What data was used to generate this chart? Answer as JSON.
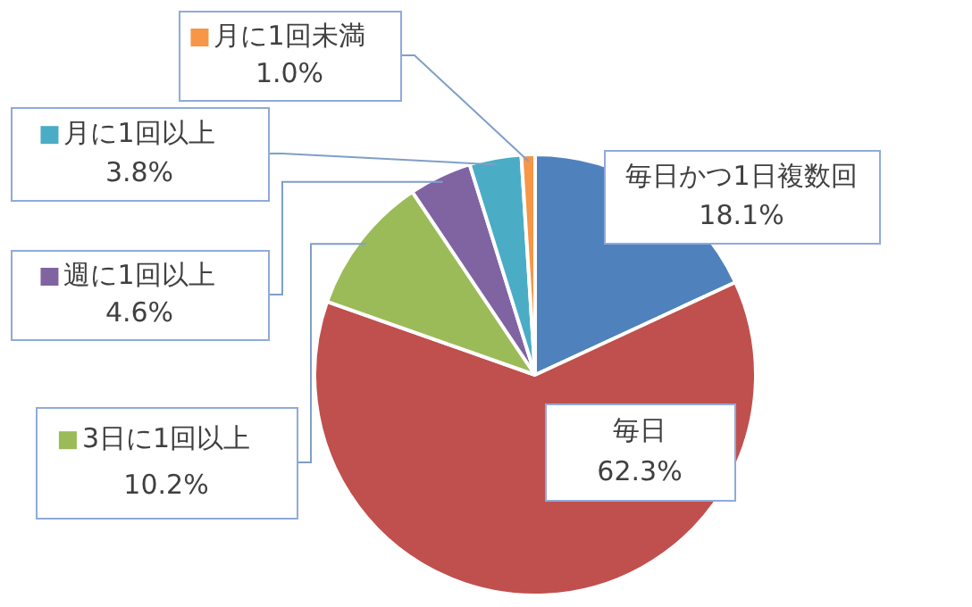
{
  "chart_data": {
    "type": "pie",
    "categories": [
      "毎日かつ1日複数回",
      "毎日",
      "3日に1回以上",
      "週に1回以上",
      "月に1回以上",
      "月に1回未満"
    ],
    "values": [
      18.1,
      62.3,
      10.2,
      4.6,
      3.8,
      1.0
    ],
    "value_labels": [
      "18.1%",
      "62.3%",
      "10.2%",
      "4.6%",
      "3.8%",
      "1.0%"
    ],
    "colors": [
      "#4f81bd",
      "#c0504d",
      "#9bbb59",
      "#8064a2",
      "#4bacc6",
      "#f79646"
    ],
    "legend": "left"
  }
}
